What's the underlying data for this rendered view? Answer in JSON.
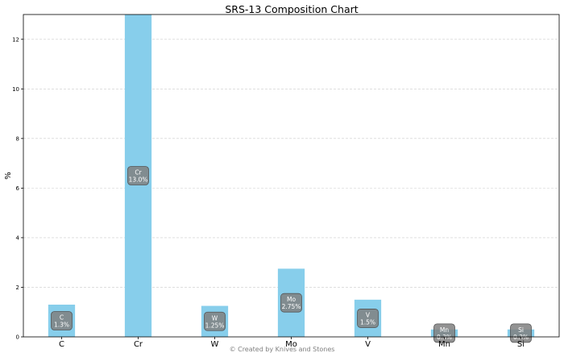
{
  "chart_data": {
    "type": "bar",
    "title": "SRS-13 Composition Chart",
    "xlabel": "",
    "ylabel": "%",
    "categories": [
      "C",
      "Cr",
      "W",
      "Mo",
      "V",
      "Mn",
      "Si"
    ],
    "values": [
      1.3,
      13.0,
      1.25,
      2.75,
      1.5,
      0.3,
      0.3
    ],
    "data_labels": [
      [
        "C",
        "1.3%"
      ],
      [
        "Cr",
        "13.0%"
      ],
      [
        "W",
        "1.25%"
      ],
      [
        "Mo",
        "2.75%"
      ],
      [
        "V",
        "1.5%"
      ],
      [
        "Mn",
        "0.3%"
      ],
      [
        "Si",
        "0.3%"
      ]
    ],
    "ylim": [
      0,
      13
    ],
    "yticks": [
      0,
      2,
      4,
      6,
      8,
      10,
      12
    ],
    "grid": "horizontal dashed",
    "bar_color": "#87ceeb",
    "label_box_color": "#808080"
  },
  "footer": {
    "credit": "© Created by Knives and Stones"
  }
}
